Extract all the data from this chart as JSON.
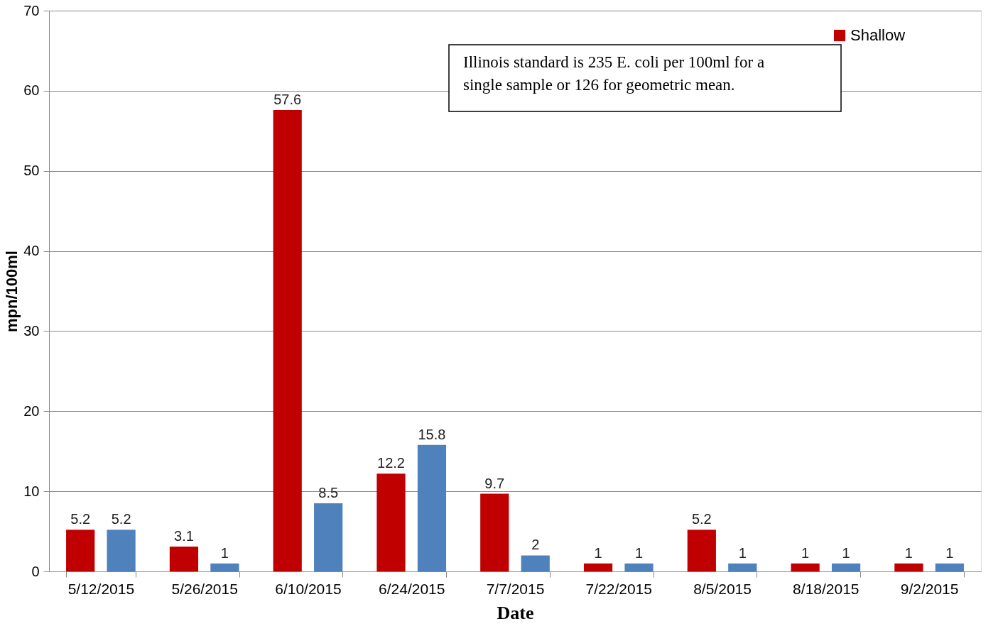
{
  "chart_data": {
    "type": "bar",
    "xlabel": "Date",
    "ylabel": "mpn/100ml",
    "categories": [
      "5/12/2015",
      "5/26/2015",
      "6/10/2015",
      "6/24/2015",
      "7/7/2015",
      "7/22/2015",
      "8/5/2015",
      "8/18/2015",
      "9/2/2015"
    ],
    "series": [
      {
        "name": "Shallow",
        "color": "#c00000",
        "values": [
          5.2,
          3.1,
          57.6,
          12.2,
          9.7,
          1,
          5.2,
          1,
          1
        ]
      },
      {
        "color": "#4f81bd",
        "values": [
          5.2,
          1,
          8.5,
          15.8,
          2,
          1,
          1,
          1,
          1
        ]
      }
    ],
    "ylim": [
      0,
      70
    ],
    "yticks": [
      0,
      10,
      20,
      30,
      40,
      50,
      60,
      70
    ],
    "grid": "y",
    "legend": "top right",
    "data_labels": true,
    "annotations": [
      "Illinois standard is 235 E. coli per 100ml for a single sample or 126 for geometric mean."
    ]
  }
}
